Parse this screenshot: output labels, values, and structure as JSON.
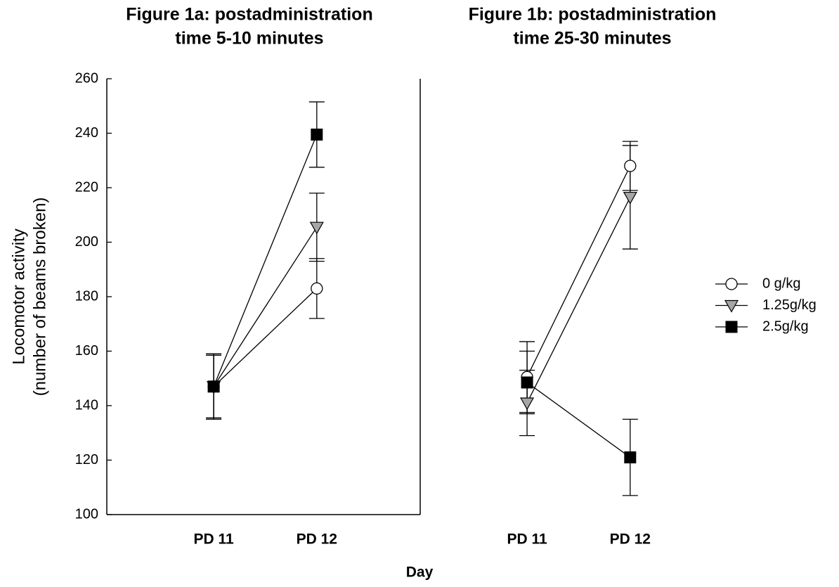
{
  "chart_data": [
    {
      "type": "line",
      "title": [
        "Figure 1a: postadministration",
        "time 5-10 minutes"
      ],
      "ylabel": [
        "Locomotor activity",
        "(number of beams broken)"
      ],
      "xlabel": "Day",
      "categories": [
        "PD 11",
        "PD 12"
      ],
      "ylim": [
        100,
        260
      ],
      "yticks": [
        100,
        120,
        140,
        160,
        180,
        200,
        220,
        240,
        260
      ],
      "series": [
        {
          "marker": "circle",
          "color": "#ffffff",
          "values": [
            147,
            183
          ],
          "errors": [
            12,
            11
          ]
        },
        {
          "marker": "triangle-down",
          "color": "#a6a6a6",
          "values": [
            147,
            205.5
          ],
          "errors": [
            11.5,
            12.5
          ]
        },
        {
          "marker": "square",
          "color": "#000000",
          "values": [
            147,
            239.5
          ],
          "errors": [
            12,
            12
          ]
        }
      ]
    },
    {
      "type": "line",
      "title": [
        "Figure 1b: postadministration",
        "time 25-30 minutes"
      ],
      "categories": [
        "PD 11",
        "PD 12"
      ],
      "ylim": [
        100,
        260
      ],
      "legend": "right",
      "series": [
        {
          "name": "0 g/kg",
          "marker": "circle",
          "color": "#ffffff",
          "values": [
            150.5,
            228
          ],
          "errors": [
            13,
            9
          ]
        },
        {
          "name": "1.25g/kg",
          "marker": "triangle-down",
          "color": "#a6a6a6",
          "values": [
            141,
            216.5
          ],
          "errors": [
            12,
            19
          ]
        },
        {
          "name": "2.5g/kg",
          "marker": "square",
          "color": "#000000",
          "values": [
            148.5,
            121
          ],
          "errors": [
            11.5,
            14
          ]
        }
      ]
    }
  ]
}
